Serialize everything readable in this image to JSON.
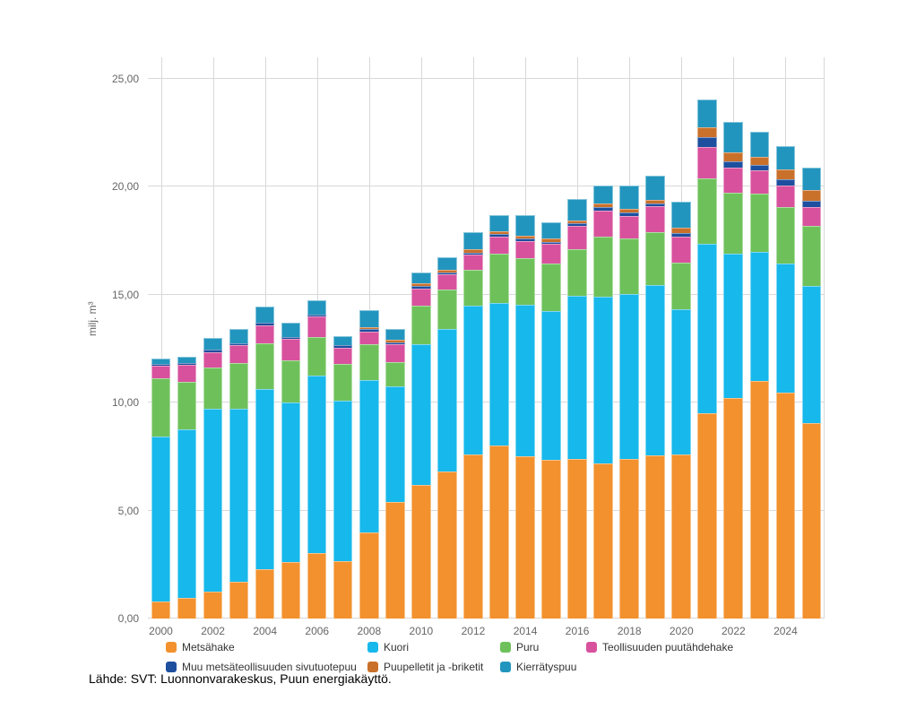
{
  "page": {
    "background": "#ffffff"
  },
  "y_axis": {
    "title": "milj. m³",
    "tick_values": [
      0,
      5,
      10,
      15,
      20,
      25
    ],
    "tick_labels": [
      "0,00",
      "5,00",
      "10,00",
      "15,00",
      "20,00",
      "25,00"
    ],
    "max": 26,
    "grid_color": "#d8d8d8",
    "label_color": "#666666"
  },
  "x_axis": {
    "tick_years": [
      2000,
      2002,
      2004,
      2006,
      2008,
      2010,
      2012,
      2014,
      2016,
      2018,
      2020,
      2022,
      2024
    ],
    "label_color": "#666666"
  },
  "legend": {
    "rows": [
      [
        "Metsähake",
        "Kuori",
        "Puru",
        "Teollisuuden puutähdehake"
      ],
      [
        "Muu metsäteollisuuden sivutuotepuu",
        "Puupelletit ja -briketit",
        "Kierrätyspuu"
      ]
    ]
  },
  "source": {
    "text": "Lähde: SVT: Luonnonvarakeskus, Puun energiakäyttö."
  },
  "chart_data": {
    "type": "bar",
    "stacked": true,
    "title": "",
    "xlabel": "",
    "ylabel": "milj. m³",
    "ylim": [
      0,
      26
    ],
    "grid": true,
    "legend_position": "bottom",
    "categories": [
      2000,
      2001,
      2002,
      2003,
      2004,
      2005,
      2006,
      2007,
      2008,
      2009,
      2010,
      2011,
      2012,
      2013,
      2014,
      2015,
      2016,
      2017,
      2018,
      2019,
      2020,
      2021,
      2022,
      2023,
      2024,
      2025
    ],
    "series": [
      {
        "name": "Metsähake",
        "color": "#F2912D",
        "values": [
          0.8,
          0.95,
          1.25,
          1.7,
          2.3,
          2.6,
          3.05,
          2.65,
          4.0,
          5.4,
          6.2,
          6.8,
          7.6,
          8.0,
          7.5,
          7.35,
          7.4,
          7.2,
          7.4,
          7.55,
          7.6,
          9.5,
          10.2,
          11.0,
          10.45,
          9.05
        ]
      },
      {
        "name": "Kuori",
        "color": "#17B8EB",
        "values": [
          7.65,
          7.8,
          8.45,
          8.0,
          8.35,
          7.4,
          8.2,
          7.45,
          7.05,
          5.35,
          6.5,
          6.6,
          6.9,
          6.6,
          7.05,
          6.9,
          7.55,
          7.7,
          7.65,
          7.9,
          6.75,
          7.85,
          6.7,
          6.0,
          6.0,
          6.35
        ]
      },
      {
        "name": "Puru",
        "color": "#6EC15A",
        "values": [
          2.7,
          2.2,
          1.95,
          2.15,
          2.1,
          1.95,
          1.8,
          1.7,
          1.65,
          1.15,
          1.8,
          1.85,
          1.65,
          2.3,
          2.15,
          2.2,
          2.15,
          2.8,
          2.55,
          2.45,
          2.15,
          3.05,
          2.85,
          2.7,
          2.6,
          2.8
        ]
      },
      {
        "name": "Teollisuuden puutähdehake",
        "color": "#D8519D",
        "values": [
          0.55,
          0.8,
          0.7,
          0.8,
          0.85,
          1.0,
          0.95,
          0.75,
          0.6,
          0.8,
          0.8,
          0.7,
          0.7,
          0.8,
          0.8,
          0.9,
          1.1,
          1.2,
          1.05,
          1.2,
          1.2,
          1.45,
          1.15,
          1.05,
          1.0,
          0.85
        ]
      },
      {
        "name": "Muu metsäteollisuuden sivutuotepuu",
        "color": "#1D4F9E",
        "values": [
          0.1,
          0.1,
          0.1,
          0.1,
          0.1,
          0.1,
          0.1,
          0.1,
          0.1,
          0.1,
          0.1,
          0.1,
          0.1,
          0.1,
          0.1,
          0.1,
          0.1,
          0.15,
          0.15,
          0.15,
          0.15,
          0.45,
          0.3,
          0.25,
          0.3,
          0.3
        ]
      },
      {
        "name": "Puupelletit ja -briketit",
        "color": "#C9702B",
        "values": [
          0,
          0,
          0,
          0,
          0,
          0,
          0,
          0,
          0.1,
          0.1,
          0.15,
          0.1,
          0.15,
          0.15,
          0.15,
          0.15,
          0.15,
          0.2,
          0.2,
          0.15,
          0.25,
          0.45,
          0.4,
          0.4,
          0.45,
          0.5
        ]
      },
      {
        "name": "Kierrätyspuu",
        "color": "#2295BE",
        "values": [
          0.25,
          0.3,
          0.55,
          0.65,
          0.75,
          0.65,
          0.65,
          0.45,
          0.8,
          0.5,
          0.5,
          0.6,
          0.8,
          0.75,
          0.95,
          0.75,
          1.0,
          0.8,
          1.05,
          1.1,
          1.2,
          1.3,
          1.4,
          1.15,
          1.1,
          1.05
        ]
      }
    ]
  }
}
